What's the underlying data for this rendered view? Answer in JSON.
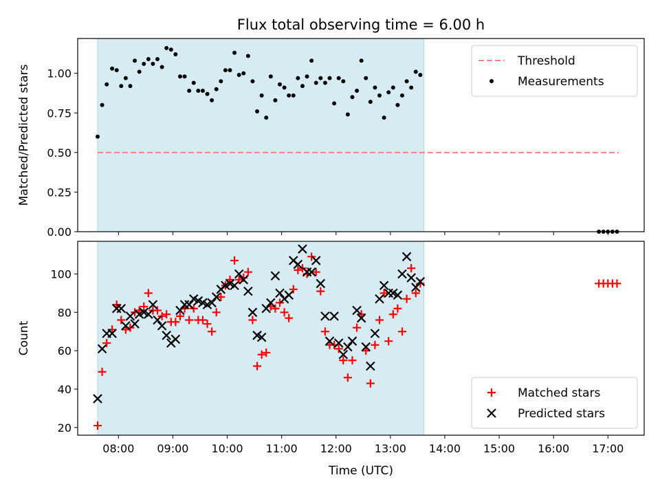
{
  "title": "Flux total observing time = 6.00 h",
  "chart_data": [
    {
      "type": "scatter",
      "title": "Flux total observing time = 6.00 h",
      "xlabel": "",
      "ylabel": "Matched/Predicted stars",
      "x_range": [
        "07:15",
        "17:40"
      ],
      "ylim": [
        0,
        1.22
      ],
      "yticks": [
        "0.00",
        "0.25",
        "0.50",
        "0.75",
        "1.00"
      ],
      "shaded_span": [
        "07:37",
        "13:37"
      ],
      "legend_position": "upper right",
      "threshold": {
        "name": "Threshold",
        "value": 0.5,
        "x": [
          "07:37",
          "17:12"
        ],
        "color": "#ff7f7f"
      },
      "series": [
        {
          "name": "Measurements",
          "color": "#000000",
          "points": [
            [
              "07:37",
              0.6
            ],
            [
              "07:42",
              0.8
            ],
            [
              "07:47",
              0.93
            ],
            [
              "07:53",
              1.03
            ],
            [
              "07:58",
              1.02
            ],
            [
              "08:03",
              0.92
            ],
            [
              "08:08",
              0.97
            ],
            [
              "08:13",
              0.92
            ],
            [
              "08:18",
              1.08
            ],
            [
              "08:23",
              1.01
            ],
            [
              "08:28",
              1.06
            ],
            [
              "08:33",
              1.09
            ],
            [
              "08:38",
              1.06
            ],
            [
              "08:43",
              1.09
            ],
            [
              "08:48",
              1.04
            ],
            [
              "08:53",
              1.16
            ],
            [
              "08:58",
              1.15
            ],
            [
              "09:03",
              1.12
            ],
            [
              "09:08",
              0.98
            ],
            [
              "09:13",
              0.98
            ],
            [
              "09:18",
              0.89
            ],
            [
              "09:23",
              0.94
            ],
            [
              "09:28",
              0.89
            ],
            [
              "09:33",
              0.89
            ],
            [
              "09:38",
              0.87
            ],
            [
              "09:43",
              0.83
            ],
            [
              "09:48",
              0.9
            ],
            [
              "09:53",
              0.95
            ],
            [
              "09:58",
              1.02
            ],
            [
              "10:03",
              1.02
            ],
            [
              "10:08",
              1.13
            ],
            [
              "10:13",
              0.99
            ],
            [
              "10:18",
              1.0
            ],
            [
              "10:23",
              1.11
            ],
            [
              "10:28",
              0.95
            ],
            [
              "10:33",
              0.76
            ],
            [
              "10:38",
              0.86
            ],
            [
              "10:43",
              0.72
            ],
            [
              "10:48",
              0.98
            ],
            [
              "10:53",
              0.83
            ],
            [
              "10:58",
              0.93
            ],
            [
              "11:03",
              0.91
            ],
            [
              "11:08",
              0.86
            ],
            [
              "11:13",
              0.86
            ],
            [
              "11:18",
              0.97
            ],
            [
              "11:23",
              0.92
            ],
            [
              "11:28",
              0.98
            ],
            [
              "11:33",
              1.08
            ],
            [
              "11:38",
              0.94
            ],
            [
              "11:43",
              0.97
            ],
            [
              "11:48",
              0.94
            ],
            [
              "11:53",
              0.97
            ],
            [
              "11:58",
              0.81
            ],
            [
              "12:03",
              0.97
            ],
            [
              "12:08",
              0.95
            ],
            [
              "12:13",
              0.74
            ],
            [
              "12:18",
              0.85
            ],
            [
              "12:23",
              0.89
            ],
            [
              "12:28",
              1.08
            ],
            [
              "12:33",
              0.97
            ],
            [
              "12:38",
              0.82
            ],
            [
              "12:43",
              0.91
            ],
            [
              "12:48",
              0.86
            ],
            [
              "12:53",
              0.72
            ],
            [
              "12:58",
              0.88
            ],
            [
              "13:03",
              0.91
            ],
            [
              "13:08",
              0.8
            ],
            [
              "13:13",
              0.86
            ],
            [
              "13:18",
              0.95
            ],
            [
              "13:23",
              0.91
            ],
            [
              "13:28",
              1.01
            ],
            [
              "13:33",
              0.99
            ],
            [
              "16:50",
              0.0
            ],
            [
              "16:55",
              0.0
            ],
            [
              "17:00",
              0.0
            ],
            [
              "17:05",
              0.0
            ],
            [
              "17:10",
              0.0
            ]
          ]
        }
      ]
    },
    {
      "type": "scatter",
      "title": "",
      "xlabel": "Time (UTC)",
      "ylabel": "Count",
      "x_range": [
        "07:15",
        "17:40"
      ],
      "xticks": [
        "08:00",
        "09:00",
        "10:00",
        "11:00",
        "12:00",
        "13:00",
        "14:00",
        "15:00",
        "16:00",
        "17:00"
      ],
      "ylim": [
        16,
        117
      ],
      "yticks": [
        "20",
        "40",
        "60",
        "80",
        "100"
      ],
      "shaded_span": [
        "07:37",
        "13:37"
      ],
      "legend_position": "lower right",
      "series": [
        {
          "name": "Matched stars",
          "marker": "+",
          "color": "#ff0000",
          "points": [
            [
              "07:37",
              21
            ],
            [
              "07:42",
              49
            ],
            [
              "07:47",
              64
            ],
            [
              "07:53",
              71
            ],
            [
              "07:58",
              84
            ],
            [
              "08:03",
              76
            ],
            [
              "08:08",
              71
            ],
            [
              "08:13",
              72
            ],
            [
              "08:18",
              80
            ],
            [
              "08:23",
              81
            ],
            [
              "08:28",
              83
            ],
            [
              "08:33",
              90
            ],
            [
              "08:38",
              81
            ],
            [
              "08:43",
              81
            ],
            [
              "08:48",
              78
            ],
            [
              "08:53",
              79
            ],
            [
              "08:58",
              75
            ],
            [
              "09:03",
              75
            ],
            [
              "09:08",
              78
            ],
            [
              "09:13",
              82
            ],
            [
              "09:18",
              76
            ],
            [
              "09:23",
              82
            ],
            [
              "09:28",
              76
            ],
            [
              "09:33",
              76
            ],
            [
              "09:38",
              74
            ],
            [
              "09:43",
              70
            ],
            [
              "09:48",
              80
            ],
            [
              "09:53",
              88
            ],
            [
              "09:58",
              94
            ],
            [
              "10:03",
              97
            ],
            [
              "10:08",
              107
            ],
            [
              "10:13",
              97
            ],
            [
              "10:18",
              98
            ],
            [
              "10:23",
              101
            ],
            [
              "10:28",
              76
            ],
            [
              "10:33",
              52
            ],
            [
              "10:38",
              58
            ],
            [
              "10:43",
              59
            ],
            [
              "10:48",
              83
            ],
            [
              "10:53",
              82
            ],
            [
              "10:58",
              85
            ],
            [
              "11:03",
              80
            ],
            [
              "11:08",
              77
            ],
            [
              "11:13",
              92
            ],
            [
              "11:18",
              102
            ],
            [
              "11:23",
              103
            ],
            [
              "11:28",
              100
            ],
            [
              "11:33",
              109
            ],
            [
              "11:38",
              101
            ],
            [
              "11:43",
              91
            ],
            [
              "11:48",
              70
            ],
            [
              "11:53",
              63
            ],
            [
              "11:58",
              63
            ],
            [
              "12:03",
              61
            ],
            [
              "12:08",
              55
            ],
            [
              "12:13",
              46
            ],
            [
              "12:18",
              55
            ],
            [
              "12:23",
              72
            ],
            [
              "12:28",
              79
            ],
            [
              "12:33",
              60
            ],
            [
              "12:38",
              43
            ],
            [
              "12:43",
              63
            ],
            [
              "12:48",
              76
            ],
            [
              "12:53",
              90
            ],
            [
              "12:58",
              65
            ],
            [
              "13:03",
              79
            ],
            [
              "13:08",
              82
            ],
            [
              "13:13",
              70
            ],
            [
              "13:18",
              87
            ],
            [
              "13:23",
              103
            ],
            [
              "13:28",
              90
            ],
            [
              "13:33",
              95
            ],
            [
              "16:50",
              95
            ],
            [
              "16:55",
              95
            ],
            [
              "17:00",
              95
            ],
            [
              "17:05",
              95
            ],
            [
              "17:10",
              95
            ]
          ]
        },
        {
          "name": "Predicted stars",
          "marker": "x",
          "color": "#000000",
          "points": [
            [
              "07:37",
              35
            ],
            [
              "07:42",
              61
            ],
            [
              "07:47",
              69
            ],
            [
              "07:53",
              69
            ],
            [
              "07:58",
              82
            ],
            [
              "08:03",
              82
            ],
            [
              "08:08",
              73
            ],
            [
              "08:13",
              78
            ],
            [
              "08:18",
              74
            ],
            [
              "08:23",
              79
            ],
            [
              "08:28",
              80
            ],
            [
              "08:33",
              79
            ],
            [
              "08:38",
              84
            ],
            [
              "08:43",
              76
            ],
            [
              "08:48",
              73
            ],
            [
              "08:53",
              68
            ],
            [
              "08:58",
              64
            ],
            [
              "09:03",
              66
            ],
            [
              "09:08",
              81
            ],
            [
              "09:13",
              84
            ],
            [
              "09:18",
              84
            ],
            [
              "09:23",
              87
            ],
            [
              "09:28",
              86
            ],
            [
              "09:33",
              85
            ],
            [
              "09:38",
              84
            ],
            [
              "09:43",
              85
            ],
            [
              "09:48",
              88
            ],
            [
              "09:53",
              92
            ],
            [
              "09:58",
              94
            ],
            [
              "10:03",
              95
            ],
            [
              "10:08",
              94
            ],
            [
              "10:13",
              100
            ],
            [
              "10:18",
              97
            ],
            [
              "10:23",
              91
            ],
            [
              "10:28",
              80
            ],
            [
              "10:33",
              68
            ],
            [
              "10:38",
              67
            ],
            [
              "10:43",
              82
            ],
            [
              "10:48",
              85
            ],
            [
              "10:53",
              99
            ],
            [
              "10:58",
              90
            ],
            [
              "11:03",
              87
            ],
            [
              "11:08",
              89
            ],
            [
              "11:13",
              107
            ],
            [
              "11:18",
              105
            ],
            [
              "11:23",
              113
            ],
            [
              "11:28",
              101
            ],
            [
              "11:33",
              101
            ],
            [
              "11:38",
              107
            ],
            [
              "11:43",
              95
            ],
            [
              "11:48",
              78
            ],
            [
              "11:53",
              65
            ],
            [
              "11:58",
              78
            ],
            [
              "12:03",
              64
            ],
            [
              "12:08",
              58
            ],
            [
              "12:13",
              62
            ],
            [
              "12:18",
              65
            ],
            [
              "12:23",
              81
            ],
            [
              "12:28",
              77
            ],
            [
              "12:33",
              62
            ],
            [
              "12:38",
              52
            ],
            [
              "12:43",
              69
            ],
            [
              "12:48",
              87
            ],
            [
              "12:53",
              94
            ],
            [
              "12:58",
              90
            ],
            [
              "13:03",
              90
            ],
            [
              "13:08",
              89
            ],
            [
              "13:13",
              100
            ],
            [
              "13:18",
              109
            ],
            [
              "13:23",
              98
            ],
            [
              "13:28",
              93
            ],
            [
              "13:33",
              96
            ]
          ]
        }
      ]
    }
  ]
}
